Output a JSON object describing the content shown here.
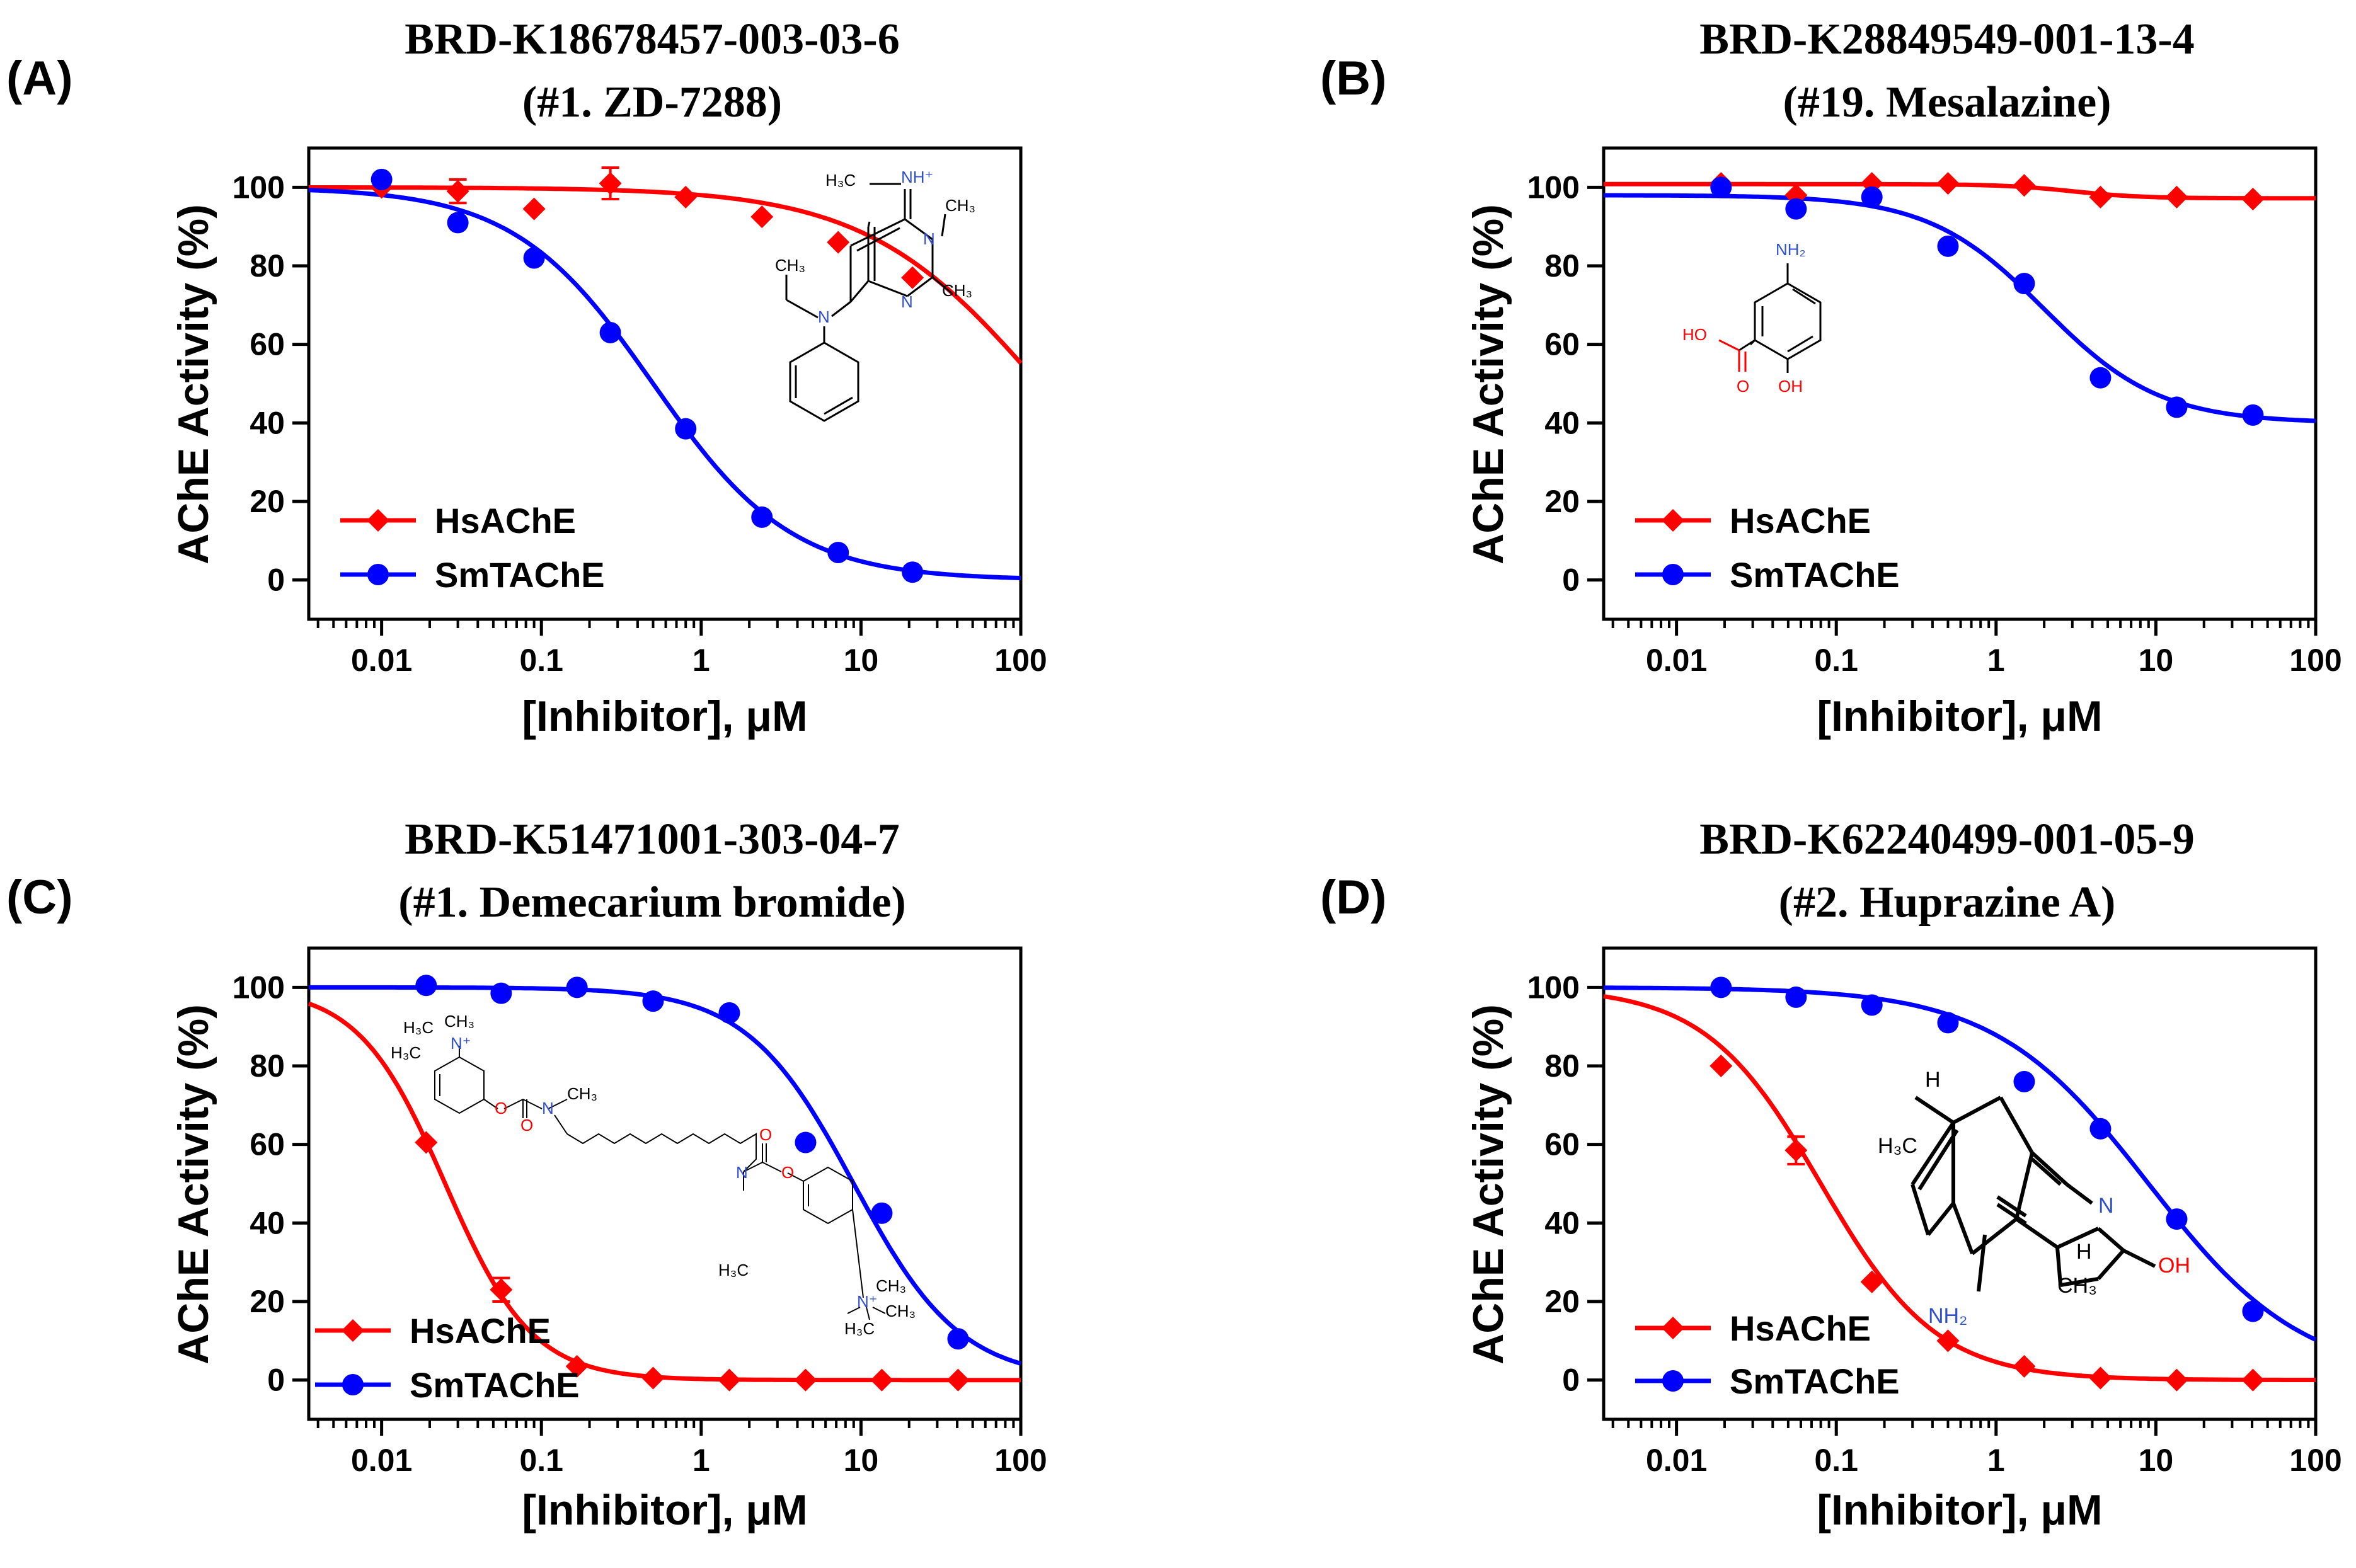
{
  "chart_data": [
    {
      "type": "line",
      "panel_label": "(A)",
      "title": "BRD-K18678457-003-03-6",
      "subtitle": "(#1. ZD-7288)",
      "xlabel": "[Inhibitor], μM",
      "ylabel": "AChE Activity (%)",
      "xscale": "log",
      "xlim": [
        0.0035,
        100
      ],
      "ylim": [
        -10,
        110
      ],
      "xticks": [
        "0.01",
        "0.1",
        "1",
        "10",
        "100"
      ],
      "yticks": [
        "0",
        "20",
        "40",
        "60",
        "80",
        "100"
      ],
      "legend": "bottom-left",
      "series": [
        {
          "name": "HsAChE",
          "color": "#ff0000",
          "marker": "diamond",
          "x": [
            0.01,
            0.03,
            0.09,
            0.27,
            0.8,
            2.4,
            7.2,
            21
          ],
          "y": [
            100,
            99,
            94.5,
            101,
            97.5,
            92.5,
            86,
            77
          ],
          "err": [
            0,
            3,
            0,
            4,
            0,
            0,
            0,
            0
          ],
          "fit": {
            "top": 100,
            "bottom": 0,
            "ic50": 130,
            "hill": 0.8
          }
        },
        {
          "name": "SmTAChE",
          "color": "#0000ff",
          "marker": "circle",
          "x": [
            0.01,
            0.03,
            0.09,
            0.27,
            0.8,
            2.4,
            7.2,
            21
          ],
          "y": [
            102,
            91,
            82,
            63,
            38.5,
            16,
            7,
            2
          ],
          "err": [
            0,
            0,
            0,
            0,
            0,
            0,
            0,
            0
          ],
          "fit": {
            "top": 100,
            "bottom": 0,
            "ic50": 0.5,
            "hill": 1.0
          }
        }
      ],
      "structure_labels": {
        "a": "H₃C",
        "b": "NH⁺",
        "c": "CH₃",
        "d": "CH₃",
        "e": "N",
        "f": "N",
        "g": "CH₃",
        "h": "N"
      }
    },
    {
      "type": "line",
      "panel_label": "(B)",
      "title": "BRD-K28849549-001-13-4",
      "subtitle": "(#19. Mesalazine)",
      "xlabel": "[Inhibitor], μM",
      "ylabel": "AChE Activity (%)",
      "xscale": "log",
      "xlim": [
        0.0035,
        100
      ],
      "ylim": [
        -10,
        110
      ],
      "xticks": [
        "0.01",
        "0.1",
        "1",
        "10",
        "100"
      ],
      "yticks": [
        "0",
        "20",
        "40",
        "60",
        "80",
        "100"
      ],
      "legend": "bottom-left",
      "series": [
        {
          "name": "HsAChE",
          "color": "#ff0000",
          "marker": "diamond",
          "x": [
            0.019,
            0.056,
            0.167,
            0.5,
            1.5,
            4.5,
            13.5,
            40.5
          ],
          "y": [
            101,
            98,
            101,
            101,
            100.5,
            97.5,
            97.5,
            97
          ],
          "err": [
            0,
            0,
            0,
            0,
            0,
            0,
            0,
            0
          ],
          "fit": {
            "top": 100.8,
            "bottom": 97.2,
            "ic50": 3,
            "hill": 2.0
          }
        },
        {
          "name": "SmTAChE",
          "color": "#0000ff",
          "marker": "circle",
          "x": [
            0.019,
            0.056,
            0.167,
            0.5,
            1.5,
            4.5,
            13.5,
            40.5
          ],
          "y": [
            100,
            94.5,
            97.5,
            85,
            75.5,
            51.5,
            44,
            42
          ],
          "err": [
            0,
            0,
            0,
            0,
            0,
            0,
            0,
            0
          ],
          "fit": {
            "top": 98,
            "bottom": 40,
            "ic50": 2,
            "hill": 1.2
          }
        }
      ],
      "structure_labels": {
        "a": "NH₂",
        "b": "HO",
        "c": "O",
        "d": "OH"
      }
    },
    {
      "type": "line",
      "panel_label": "(C)",
      "title": "BRD-K51471001-303-04-7",
      "subtitle": "(#1. Demecarium bromide)",
      "xlabel": "[Inhibitor], μM",
      "ylabel": "AChE Activity (%)",
      "xscale": "log",
      "xlim": [
        0.0035,
        100
      ],
      "ylim": [
        -10,
        110
      ],
      "xticks": [
        "0.01",
        "0.1",
        "1",
        "10",
        "100"
      ],
      "yticks": [
        "0",
        "20",
        "40",
        "60",
        "80",
        "100"
      ],
      "legend": "bottom-left",
      "series": [
        {
          "name": "HsAChE",
          "color": "#ff0000",
          "marker": "diamond",
          "x": [
            0.019,
            0.056,
            0.167,
            0.5,
            1.5,
            4.5,
            13.5,
            40.5
          ],
          "y": [
            60.5,
            23,
            3.5,
            0.5,
            0,
            0,
            0,
            0
          ],
          "err": [
            0,
            3,
            0,
            0,
            0,
            0,
            0,
            0
          ],
          "fit": {
            "top": 100,
            "bottom": 0,
            "ic50": 0.025,
            "hill": 1.6
          }
        },
        {
          "name": "SmTAChE",
          "color": "#0000ff",
          "marker": "circle",
          "x": [
            0.019,
            0.056,
            0.167,
            0.5,
            1.5,
            4.5,
            13.5,
            40.5
          ],
          "y": [
            100.5,
            98.5,
            100,
            96.5,
            93.5,
            60.5,
            42.5,
            10.5
          ],
          "err": [
            0,
            0,
            0,
            0,
            0,
            0,
            0,
            0
          ],
          "fit": {
            "top": 100,
            "bottom": 0,
            "ic50": 9,
            "hill": 1.3
          }
        }
      ],
      "structure_labels": {
        "a": "H₃C",
        "b": "CH₃",
        "c": "H₃C",
        "d": "N⁺",
        "e": "O",
        "f": "O",
        "g": "N",
        "h": "CH₃",
        "i": "N",
        "j": "H₃C",
        "k": "O",
        "l": "O",
        "m": "N⁺",
        "n": "CH₃",
        "o": "CH₃",
        "p": "H₃C"
      }
    },
    {
      "type": "line",
      "panel_label": "(D)",
      "title": "BRD-K62240499-001-05-9",
      "subtitle": "(#2. Huprazine A)",
      "xlabel": "[Inhibitor], μM",
      "ylabel": "AChE Activity (%)",
      "xscale": "log",
      "xlim": [
        0.0035,
        100
      ],
      "ylim": [
        -10,
        110
      ],
      "xticks": [
        "0.01",
        "0.1",
        "1",
        "10",
        "100"
      ],
      "yticks": [
        "0",
        "20",
        "40",
        "60",
        "80",
        "100"
      ],
      "legend": "bottom-left",
      "series": [
        {
          "name": "HsAChE",
          "color": "#ff0000",
          "marker": "diamond",
          "x": [
            0.019,
            0.056,
            0.167,
            0.5,
            1.5,
            4.5,
            13.5,
            40.5
          ],
          "y": [
            80,
            58.5,
            25,
            10,
            3.5,
            0.5,
            0,
            0
          ],
          "err": [
            0,
            3.5,
            0,
            0,
            0,
            0,
            0,
            0
          ],
          "fit": {
            "top": 100,
            "bottom": 0,
            "ic50": 0.08,
            "hill": 1.2
          }
        },
        {
          "name": "SmTAChE",
          "color": "#0000ff",
          "marker": "circle",
          "x": [
            0.019,
            0.056,
            0.167,
            0.5,
            1.5,
            4.5,
            13.5,
            40.5
          ],
          "y": [
            100,
            97.5,
            95.5,
            91,
            76,
            64,
            41,
            17.5
          ],
          "err": [
            0,
            0,
            0,
            0,
            0,
            0,
            0,
            0
          ],
          "fit": {
            "top": 100,
            "bottom": 0,
            "ic50": 9,
            "hill": 0.9
          }
        }
      ],
      "structure_labels": {
        "a": "H",
        "b": "H₃C",
        "c": "N",
        "d": "H",
        "e": "OH",
        "f": "CH₃",
        "g": "NH₂"
      }
    }
  ]
}
